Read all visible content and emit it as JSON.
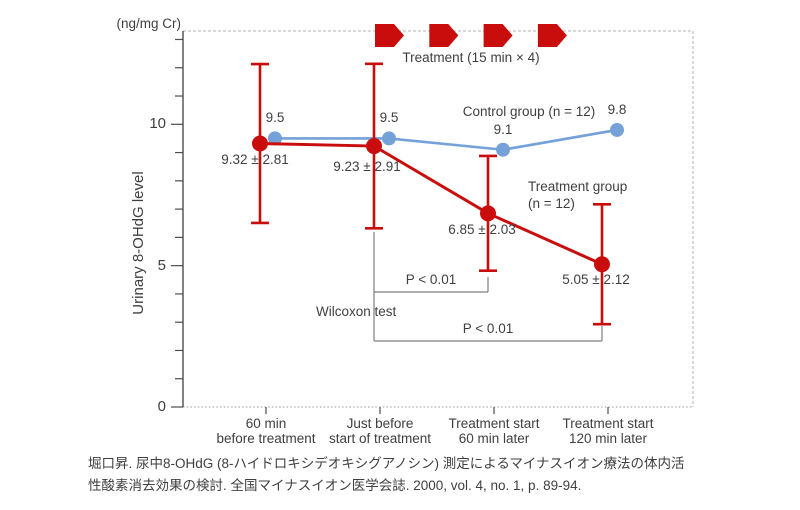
{
  "figure": {
    "unit_label": "(ng/mg Cr)",
    "treatment_group_label_line1": "Treatment group",
    "treatment_group_label_line2": "(n = 12)"
  },
  "citation": {
    "line1": "堀口昇. 尿中8-OHdG (8-ハイドロキシデオキシグアノシン) 測定によるマイナスイオン療法の体内活",
    "line2": "性酸素消去効果の検討. 全国マイナスイオン医学会誌. 2000, vol. 4, no. 1, p. 89-94."
  },
  "chart_data": {
    "type": "line",
    "title": "",
    "ylabel": "Urinary 8-OHdG level",
    "unit": "ng/mg Cr",
    "categories": [
      [
        "60 min",
        "before treatment"
      ],
      [
        "Just before",
        "start of treatment"
      ],
      [
        "Treatment start",
        "60 min later"
      ],
      [
        "Treatment start",
        "120 min later"
      ]
    ],
    "ylim": [
      0,
      13.3
    ],
    "yticks_labeled": [
      0,
      5,
      10
    ],
    "ytick_minor_step": 1,
    "grid": false,
    "legend_position": "inline",
    "series": [
      {
        "name": "Control group (n = 12)",
        "color": "#74A1D8",
        "values": [
          9.5,
          9.5,
          9.1,
          9.8
        ],
        "point_labels": [
          "9.5",
          "9.5",
          "9.1",
          "9.8"
        ]
      },
      {
        "name": "Treatment group (n = 12)",
        "color": "#C90D0D",
        "values": [
          9.32,
          9.23,
          6.85,
          5.05
        ],
        "errors": [
          2.81,
          2.91,
          2.03,
          2.12
        ],
        "point_labels": [
          "9.32 ± 2.81",
          "9.23 ± 2.91",
          "6.85 ± 2.03",
          "5.05 ± 2.12"
        ]
      }
    ],
    "annotations": {
      "treatment_label": "Treatment (15 min × 4)",
      "arrow_count": 4,
      "stat_test": "Wilcoxon test",
      "comparisons": [
        {
          "label": "P < 0.01",
          "from_category": 1,
          "to_category": 2
        },
        {
          "label": "P < 0.01",
          "from_category": 1,
          "to_category": 3
        }
      ]
    },
    "colors": {
      "treatment_red": "#C90D0D",
      "control_blue": "#74A1D8",
      "text": "#3f3f3f",
      "axis": "#4d4d4d",
      "bracket": "#7f7f7f",
      "border_dashed": "#b3b3b3",
      "baseline_dotted": "#9a9a9a"
    }
  }
}
